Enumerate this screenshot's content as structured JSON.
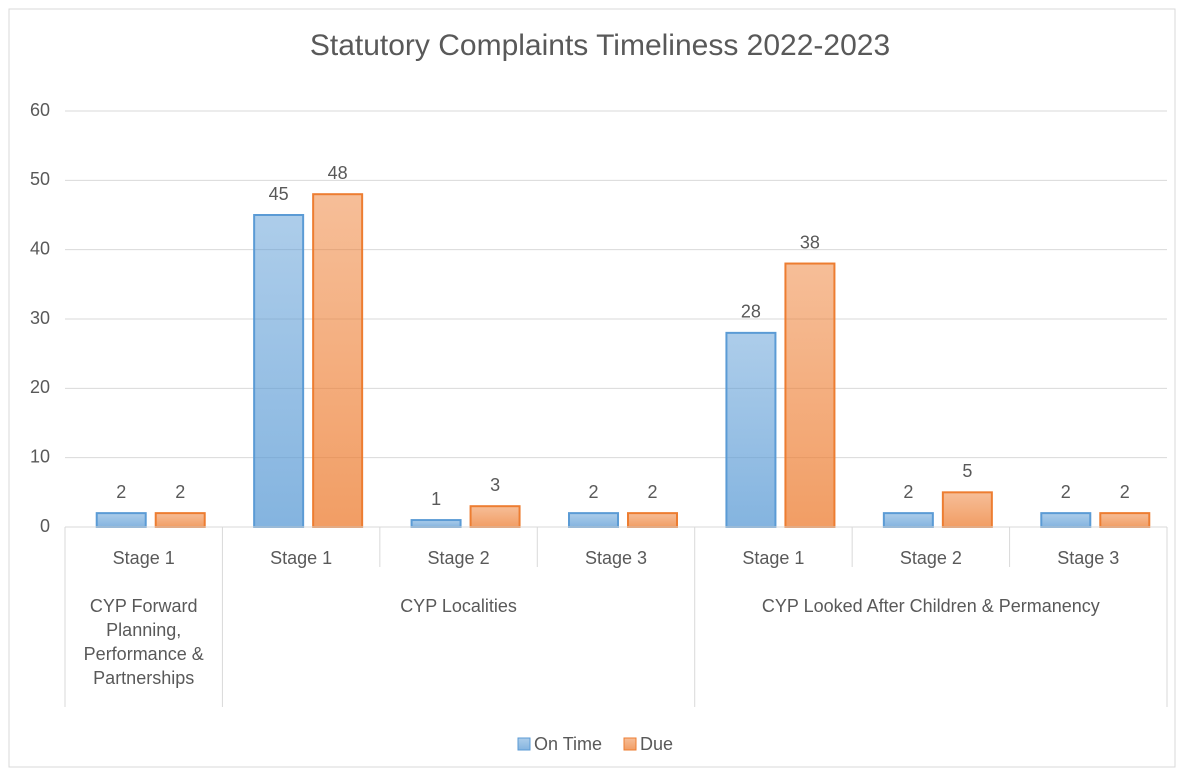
{
  "chart_data": {
    "type": "bar",
    "title": "Statutory Complaints Timeliness 2022-2023",
    "groups": [
      {
        "name": "CYP Forward Planning, Performance & Partnerships",
        "categories": [
          "Stage 1"
        ]
      },
      {
        "name": "CYP Localities",
        "categories": [
          "Stage 1",
          "Stage 2",
          "Stage 3"
        ]
      },
      {
        "name": "CYP Looked After Children & Permanency",
        "categories": [
          "Stage 1",
          "Stage 2",
          "Stage 3"
        ]
      }
    ],
    "series": [
      {
        "name": "On Time",
        "color": "#5b9bd5",
        "values": [
          2,
          45,
          1,
          2,
          28,
          2,
          2
        ]
      },
      {
        "name": "Due",
        "color": "#ed7d31",
        "values": [
          2,
          48,
          3,
          2,
          38,
          5,
          2
        ]
      }
    ],
    "ylim": [
      0,
      60
    ],
    "yticks": [
      0,
      10,
      20,
      30,
      40,
      50,
      60
    ],
    "grid": true,
    "legend": "bottom"
  }
}
